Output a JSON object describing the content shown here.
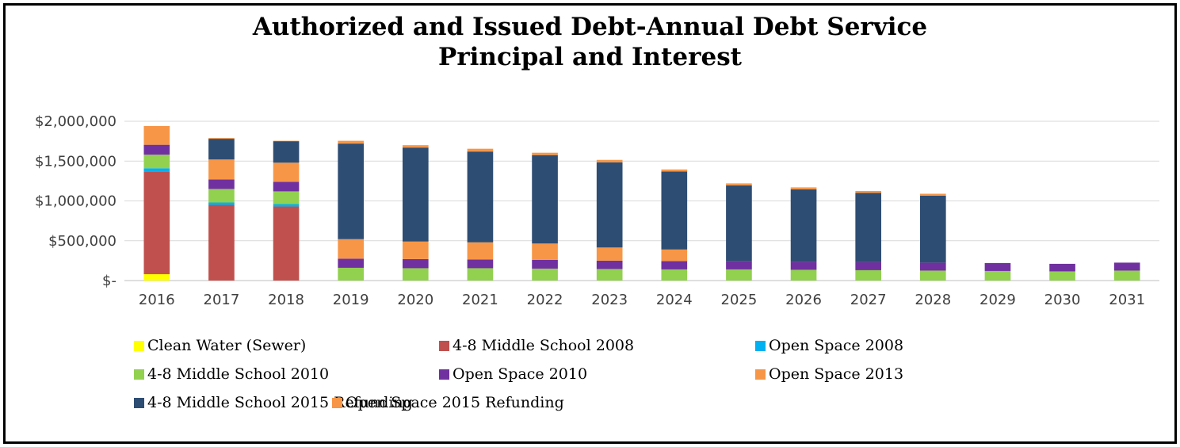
{
  "chart_data": {
    "type": "bar",
    "stacked": true,
    "title": [
      "Authorized and Issued Debt-Annual Debt Service",
      "Principal and Interest"
    ],
    "categories": [
      "2016",
      "2017",
      "2018",
      "2019",
      "2020",
      "2021",
      "2022",
      "2023",
      "2024",
      "2025",
      "2026",
      "2027",
      "2028",
      "2029",
      "2030",
      "2031"
    ],
    "ylim": [
      0,
      2000000
    ],
    "yticks": [
      0,
      500000,
      1000000,
      1500000,
      2000000
    ],
    "ytick_labels": [
      "$-",
      "$500,000",
      "$1,000,000",
      "$1,500,000",
      "$2,000,000"
    ],
    "grid": true,
    "legend_position": "bottom",
    "series": [
      {
        "name": "Clean Water (Sewer)",
        "color": "#FFFF00",
        "values": [
          80000,
          0,
          0,
          0,
          0,
          0,
          0,
          0,
          0,
          0,
          0,
          0,
          0,
          0,
          0,
          0
        ]
      },
      {
        "name": "4-8 Middle School 2008",
        "color": "#C0504D",
        "values": [
          1290000,
          950000,
          930000,
          0,
          0,
          0,
          0,
          0,
          0,
          0,
          0,
          0,
          0,
          0,
          0,
          0
        ]
      },
      {
        "name": "Open Space 2008",
        "color": "#00B0F0",
        "values": [
          40000,
          30000,
          30000,
          0,
          0,
          0,
          0,
          0,
          0,
          0,
          0,
          0,
          0,
          0,
          0,
          0
        ]
      },
      {
        "name": "4-8 Middle School 2010",
        "color": "#92D050",
        "values": [
          170000,
          170000,
          160000,
          160000,
          155000,
          155000,
          150000,
          145000,
          140000,
          140000,
          135000,
          130000,
          125000,
          120000,
          115000,
          125000
        ]
      },
      {
        "name": "Open Space 2010",
        "color": "#7030A0",
        "values": [
          125000,
          120000,
          120000,
          115000,
          115000,
          110000,
          110000,
          105000,
          105000,
          105000,
          100000,
          100000,
          100000,
          100000,
          95000,
          100000
        ]
      },
      {
        "name": "Open Space 2013",
        "color": "#F79646",
        "values": [
          235000,
          250000,
          240000,
          245000,
          220000,
          215000,
          205000,
          165000,
          145000,
          0,
          0,
          0,
          0,
          0,
          0,
          0
        ]
      },
      {
        "name": "4-8 Middle School 2015 Refunding",
        "color": "#2E4D73",
        "values": [
          0,
          260000,
          270000,
          1200000,
          1180000,
          1140000,
          1110000,
          1070000,
          980000,
          950000,
          910000,
          870000,
          840000,
          0,
          0,
          0
        ]
      },
      {
        "name": "Open Space 2015 Refunding",
        "color": "#F79646",
        "values": [
          0,
          10000,
          5000,
          35000,
          30000,
          35000,
          30000,
          30000,
          25000,
          25000,
          25000,
          25000,
          25000,
          0,
          0,
          0
        ]
      }
    ]
  }
}
